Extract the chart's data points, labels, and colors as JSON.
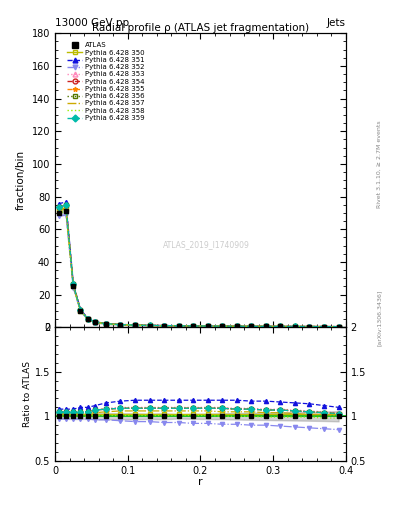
{
  "title_main": "13000 GeV pp",
  "title_right": "Jets",
  "plot_title": "Radial profile ρ (ATLAS jet fragmentation)",
  "ylabel_main": "fraction/bin",
  "ylabel_ratio": "Ratio to ATLAS",
  "xlabel": "r",
  "watermark": "ATLAS_2019_I1740909",
  "right_label_top": "Rivet 3.1.10, ≥ 2.7M events",
  "right_label_bottom": "[arXiv:1306.3436]",
  "r_values": [
    0.005,
    0.015,
    0.025,
    0.035,
    0.045,
    0.055,
    0.07,
    0.09,
    0.11,
    0.13,
    0.15,
    0.17,
    0.19,
    0.21,
    0.23,
    0.25,
    0.27,
    0.29,
    0.31,
    0.33,
    0.35,
    0.37,
    0.39
  ],
  "atlas_values": [
    70,
    71,
    25,
    10,
    5,
    3,
    2,
    1.5,
    1.2,
    1.0,
    0.9,
    0.8,
    0.7,
    0.65,
    0.6,
    0.55,
    0.5,
    0.48,
    0.45,
    0.42,
    0.4,
    0.38,
    0.35
  ],
  "atlas_errors": [
    2,
    2,
    0.8,
    0.3,
    0.15,
    0.1,
    0.07,
    0.05,
    0.04,
    0.03,
    0.03,
    0.02,
    0.02,
    0.02,
    0.02,
    0.02,
    0.02,
    0.02,
    0.02,
    0.02,
    0.02,
    0.02,
    0.02
  ],
  "series": [
    {
      "label": "Pythia 6.428 350",
      "color": "#bbbb00",
      "linestyle": "-",
      "marker": "s",
      "markerfacecolor": "none",
      "ratio": [
        1.02,
        1.02,
        1.02,
        1.02,
        1.02,
        1.02,
        1.02,
        1.02,
        1.02,
        1.02,
        1.02,
        1.02,
        1.02,
        1.02,
        1.02,
        1.02,
        1.02,
        1.02,
        1.02,
        1.02,
        1.02,
        1.02,
        1.02
      ]
    },
    {
      "label": "Pythia 6.428 351",
      "color": "#1111dd",
      "linestyle": "--",
      "marker": "^",
      "markerfacecolor": "#1111dd",
      "ratio": [
        1.08,
        1.08,
        1.08,
        1.1,
        1.1,
        1.12,
        1.15,
        1.17,
        1.18,
        1.18,
        1.18,
        1.18,
        1.18,
        1.18,
        1.18,
        1.18,
        1.17,
        1.17,
        1.16,
        1.15,
        1.14,
        1.12,
        1.1
      ]
    },
    {
      "label": "Pythia 6.428 352",
      "color": "#8888ee",
      "linestyle": "-.",
      "marker": "v",
      "markerfacecolor": "#8888ee",
      "ratio": [
        0.97,
        0.97,
        0.97,
        0.97,
        0.97,
        0.96,
        0.96,
        0.95,
        0.94,
        0.94,
        0.93,
        0.93,
        0.92,
        0.92,
        0.91,
        0.91,
        0.9,
        0.9,
        0.89,
        0.88,
        0.87,
        0.86,
        0.85
      ]
    },
    {
      "label": "Pythia 6.428 353",
      "color": "#ff88bb",
      "linestyle": ":",
      "marker": "^",
      "markerfacecolor": "none",
      "ratio": [
        1.05,
        1.05,
        1.05,
        1.05,
        1.05,
        1.07,
        1.09,
        1.1,
        1.1,
        1.1,
        1.1,
        1.1,
        1.1,
        1.1,
        1.1,
        1.09,
        1.09,
        1.08,
        1.08,
        1.07,
        1.06,
        1.05,
        1.04
      ]
    },
    {
      "label": "Pythia 6.428 354",
      "color": "#cc2222",
      "linestyle": "--",
      "marker": "o",
      "markerfacecolor": "none",
      "ratio": [
        1.05,
        1.05,
        1.05,
        1.05,
        1.05,
        1.07,
        1.08,
        1.09,
        1.09,
        1.09,
        1.09,
        1.09,
        1.09,
        1.09,
        1.09,
        1.08,
        1.08,
        1.07,
        1.07,
        1.06,
        1.05,
        1.04,
        1.03
      ]
    },
    {
      "label": "Pythia 6.428 355",
      "color": "#ff8800",
      "linestyle": "--",
      "marker": "*",
      "markerfacecolor": "#ff8800",
      "ratio": [
        1.05,
        1.05,
        1.05,
        1.05,
        1.05,
        1.07,
        1.08,
        1.09,
        1.09,
        1.09,
        1.09,
        1.09,
        1.09,
        1.09,
        1.09,
        1.08,
        1.08,
        1.07,
        1.07,
        1.06,
        1.05,
        1.04,
        1.03
      ]
    },
    {
      "label": "Pythia 6.428 356",
      "color": "#557700",
      "linestyle": ":",
      "marker": "s",
      "markerfacecolor": "none",
      "ratio": [
        1.05,
        1.05,
        1.05,
        1.05,
        1.05,
        1.07,
        1.08,
        1.09,
        1.09,
        1.09,
        1.09,
        1.09,
        1.09,
        1.09,
        1.09,
        1.08,
        1.08,
        1.07,
        1.07,
        1.06,
        1.05,
        1.04,
        1.03
      ]
    },
    {
      "label": "Pythia 6.428 357",
      "color": "#ccaa00",
      "linestyle": "-.",
      "marker": null,
      "markerfacecolor": "none",
      "ratio": [
        1.03,
        1.03,
        1.03,
        1.03,
        1.03,
        1.04,
        1.05,
        1.06,
        1.06,
        1.06,
        1.06,
        1.06,
        1.06,
        1.06,
        1.05,
        1.05,
        1.05,
        1.04,
        1.04,
        1.03,
        1.02,
        1.02,
        1.01
      ]
    },
    {
      "label": "Pythia 6.428 358",
      "color": "#99ee00",
      "linestyle": ":",
      "marker": null,
      "markerfacecolor": "none",
      "ratio": [
        1.0,
        1.0,
        1.0,
        1.0,
        1.0,
        1.01,
        1.01,
        1.01,
        1.01,
        1.01,
        1.01,
        1.01,
        1.01,
        1.01,
        1.0,
        1.0,
        1.0,
        0.99,
        0.99,
        0.99,
        0.99,
        0.98,
        0.98
      ]
    },
    {
      "label": "Pythia 6.428 359",
      "color": "#00bbaa",
      "linestyle": "--",
      "marker": "D",
      "markerfacecolor": "#00bbaa",
      "ratio": [
        1.05,
        1.05,
        1.05,
        1.05,
        1.05,
        1.07,
        1.08,
        1.09,
        1.09,
        1.09,
        1.09,
        1.09,
        1.09,
        1.09,
        1.09,
        1.08,
        1.08,
        1.07,
        1.07,
        1.06,
        1.05,
        1.04,
        1.03
      ]
    }
  ],
  "ylim_main": [
    0,
    180
  ],
  "ylim_ratio": [
    0.5,
    2.0
  ],
  "xlim": [
    0,
    0.4
  ],
  "yticks_main": [
    0,
    20,
    40,
    60,
    80,
    100,
    120,
    140,
    160,
    180
  ],
  "yticks_ratio": [
    0.5,
    1.0,
    1.5,
    2.0
  ],
  "xticks": [
    0.0,
    0.1,
    0.2,
    0.3,
    0.4
  ],
  "background_color": "#ffffff",
  "ratio_line_color": "#00bb00"
}
